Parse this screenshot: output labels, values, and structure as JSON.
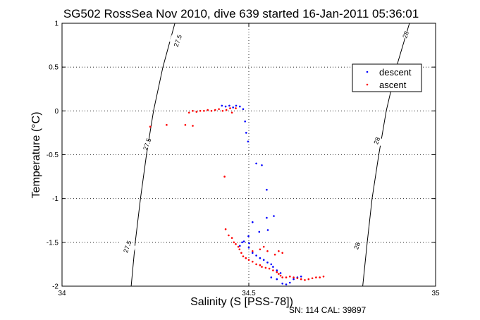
{
  "chart_data": {
    "type": "scatter",
    "title": "SG502 RossSea Nov 2010, dive 639 started 16-Jan-2011 05:36:01",
    "xlabel": "Salinity (S [PSS-78])",
    "ylabel": "Temperature (°C)",
    "footer": "SN: 114  CAL: 39897",
    "xlim": [
      34,
      35
    ],
    "ylim": [
      -2,
      1
    ],
    "xticks": [
      34,
      34.5,
      35
    ],
    "xtick_labels": [
      "34",
      "34.5",
      "35"
    ],
    "yticks": [
      1,
      0.5,
      0,
      -0.5,
      -1,
      -1.5,
      -2
    ],
    "ytick_labels": [
      "1",
      "0.5",
      "0",
      "-0.5",
      "-1",
      "-1.5",
      "-2"
    ],
    "grid": true,
    "legend_position": "top-right",
    "series": [
      {
        "name": "descent",
        "color": "#0000ff",
        "points": [
          [
            34.428,
            0.06
          ],
          [
            34.438,
            0.05
          ],
          [
            34.448,
            0.06
          ],
          [
            34.458,
            0.04
          ],
          [
            34.466,
            0.06
          ],
          [
            34.476,
            0.05
          ],
          [
            34.485,
            0.02
          ],
          [
            34.49,
            -0.12
          ],
          [
            34.493,
            -0.25
          ],
          [
            34.498,
            -0.35
          ],
          [
            34.52,
            -0.6
          ],
          [
            34.535,
            -0.62
          ],
          [
            34.548,
            -0.9
          ],
          [
            34.548,
            -1.22
          ],
          [
            34.567,
            -1.2
          ],
          [
            34.51,
            -1.27
          ],
          [
            34.528,
            -1.38
          ],
          [
            34.551,
            -1.36
          ],
          [
            34.499,
            -1.43
          ],
          [
            34.487,
            -1.49
          ],
          [
            34.482,
            -1.5
          ],
          [
            34.476,
            -1.54
          ],
          [
            34.501,
            -1.51
          ],
          [
            34.5,
            -1.56
          ],
          [
            34.51,
            -1.62
          ],
          [
            34.52,
            -1.65
          ],
          [
            34.53,
            -1.68
          ],
          [
            34.54,
            -1.7
          ],
          [
            34.55,
            -1.73
          ],
          [
            34.56,
            -1.75
          ],
          [
            34.565,
            -1.78
          ],
          [
            34.575,
            -1.82
          ],
          [
            34.585,
            -1.85
          ],
          [
            34.56,
            -1.9
          ],
          [
            34.575,
            -1.92
          ],
          [
            34.59,
            -1.97
          ],
          [
            34.6,
            -1.98
          ],
          [
            34.61,
            -1.96
          ],
          [
            34.62,
            -1.92
          ],
          [
            34.63,
            -1.9
          ],
          [
            34.64,
            -1.89
          ]
        ]
      },
      {
        "name": "ascent",
        "color": "#ff0000",
        "points": [
          [
            34.236,
            -0.18
          ],
          [
            34.28,
            -0.16
          ],
          [
            34.33,
            -0.16
          ],
          [
            34.35,
            -0.17
          ],
          [
            34.34,
            -0.02
          ],
          [
            34.35,
            0.0
          ],
          [
            34.36,
            -0.01
          ],
          [
            34.37,
            0.0
          ],
          [
            34.38,
            0.0
          ],
          [
            34.39,
            0.01
          ],
          [
            34.4,
            0.0
          ],
          [
            34.41,
            0.01
          ],
          [
            34.42,
            0.02
          ],
          [
            34.43,
            0.0
          ],
          [
            34.44,
            0.01
          ],
          [
            34.45,
            0.03
          ],
          [
            34.455,
            -0.02
          ],
          [
            34.465,
            0.03
          ],
          [
            34.435,
            -0.75
          ],
          [
            34.438,
            -1.35
          ],
          [
            34.446,
            -1.42
          ],
          [
            34.455,
            -1.45
          ],
          [
            34.46,
            -1.5
          ],
          [
            34.465,
            -1.52
          ],
          [
            34.472,
            -1.55
          ],
          [
            34.475,
            -1.58
          ],
          [
            34.48,
            -1.62
          ],
          [
            34.485,
            -1.66
          ],
          [
            34.492,
            -1.68
          ],
          [
            34.5,
            -1.7
          ],
          [
            34.51,
            -1.72
          ],
          [
            34.52,
            -1.75
          ],
          [
            34.53,
            -1.76
          ],
          [
            34.535,
            -1.78
          ],
          [
            34.545,
            -1.79
          ],
          [
            34.555,
            -1.8
          ],
          [
            34.565,
            -1.82
          ],
          [
            34.575,
            -1.84
          ],
          [
            34.58,
            -1.86
          ],
          [
            34.585,
            -1.88
          ],
          [
            34.59,
            -1.9
          ],
          [
            34.6,
            -1.9
          ],
          [
            34.61,
            -1.89
          ],
          [
            34.62,
            -1.9
          ],
          [
            34.63,
            -1.91
          ],
          [
            34.64,
            -1.92
          ],
          [
            34.65,
            -1.93
          ],
          [
            34.66,
            -1.92
          ],
          [
            34.67,
            -1.91
          ],
          [
            34.68,
            -1.9
          ],
          [
            34.69,
            -1.9
          ],
          [
            34.7,
            -1.89
          ],
          [
            34.51,
            -1.6
          ],
          [
            34.53,
            -1.58
          ],
          [
            34.55,
            -1.6
          ],
          [
            34.57,
            -1.64
          ],
          [
            34.58,
            -1.6
          ],
          [
            34.59,
            -1.62
          ],
          [
            34.54,
            -1.55
          ]
        ]
      }
    ],
    "contours": [
      {
        "label": "27.5",
        "points": [
          [
            34.302,
            1
          ],
          [
            34.27,
            0.5
          ],
          [
            34.245,
            0
          ],
          [
            34.226,
            -0.5
          ],
          [
            34.21,
            -1
          ],
          [
            34.196,
            -1.5
          ],
          [
            34.185,
            -2
          ]
        ],
        "label_positions": [
          [
            34.31,
            0.8
          ],
          [
            34.228,
            -0.38
          ],
          [
            34.175,
            -1.55
          ]
        ]
      },
      {
        "label": "28",
        "points": [
          [
            34.93,
            1
          ],
          [
            34.895,
            0.5
          ],
          [
            34.868,
            0
          ],
          [
            34.848,
            -0.5
          ],
          [
            34.83,
            -1
          ],
          [
            34.817,
            -1.5
          ],
          [
            34.805,
            -2
          ]
        ],
        "label_positions": [
          [
            34.92,
            0.87
          ],
          [
            34.843,
            -0.34
          ],
          [
            34.79,
            -1.54
          ]
        ]
      }
    ]
  }
}
